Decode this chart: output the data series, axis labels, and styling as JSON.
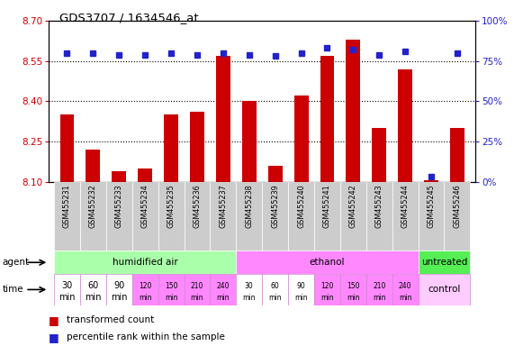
{
  "title": "GDS3707 / 1634546_at",
  "samples": [
    "GSM455231",
    "GSM455232",
    "GSM455233",
    "GSM455234",
    "GSM455235",
    "GSM455236",
    "GSM455237",
    "GSM455238",
    "GSM455239",
    "GSM455240",
    "GSM455241",
    "GSM455242",
    "GSM455243",
    "GSM455244",
    "GSM455245",
    "GSM455246"
  ],
  "bar_values": [
    8.35,
    8.22,
    8.14,
    8.15,
    8.35,
    8.36,
    8.57,
    8.4,
    8.16,
    8.42,
    8.57,
    8.63,
    8.3,
    8.52,
    8.105,
    8.3
  ],
  "percentile_values": [
    80,
    80,
    79,
    79,
    80,
    79,
    80,
    79,
    78,
    80,
    83,
    82,
    79,
    81,
    3,
    80
  ],
  "ylim_left": [
    8.1,
    8.7
  ],
  "ylim_right": [
    0,
    100
  ],
  "yticks_left": [
    8.1,
    8.25,
    8.4,
    8.55,
    8.7
  ],
  "yticks_right": [
    0,
    25,
    50,
    75,
    100
  ],
  "bar_color": "#CC0000",
  "dot_color": "#2222CC",
  "bar_bottom": 8.1,
  "agent_groups": [
    {
      "label": "humidified air",
      "start": 0,
      "end": 7,
      "color": "#AAFFAA"
    },
    {
      "label": "ethanol",
      "start": 7,
      "end": 14,
      "color": "#FF88FF"
    },
    {
      "label": "untreated",
      "start": 14,
      "end": 16,
      "color": "#55EE55"
    }
  ],
  "time_labels_first": [
    "30\nmin",
    "60\nmin",
    "90\nmin",
    "120\nmin",
    "150\nmin",
    "210\nmin",
    "240\nmin"
  ],
  "time_labels_second": [
    "30\nmin",
    "60\nmin",
    "90\nmin",
    "120\nmin",
    "150\nmin",
    "210\nmin",
    "240\nmin"
  ],
  "time_colors_first": [
    "#FFFFFF",
    "#FFFFFF",
    "#FFFFFF",
    "#FF88FF",
    "#FF88FF",
    "#FF88FF",
    "#FF88FF"
  ],
  "time_colors_second": [
    "#FFFFFF",
    "#FFFFFF",
    "#FFFFFF",
    "#FF88FF",
    "#FF88FF",
    "#FF88FF",
    "#FF88FF"
  ],
  "control_label": "control",
  "control_color": "#FFCCFF",
  "legend_bar_label": "transformed count",
  "legend_dot_label": "percentile rank within the sample",
  "bg_color": "#FFFFFF",
  "axis_color_left": "#CC0000",
  "axis_color_right": "#2222CC",
  "sample_box_color": "#CCCCCC",
  "spine_color": "#000000"
}
